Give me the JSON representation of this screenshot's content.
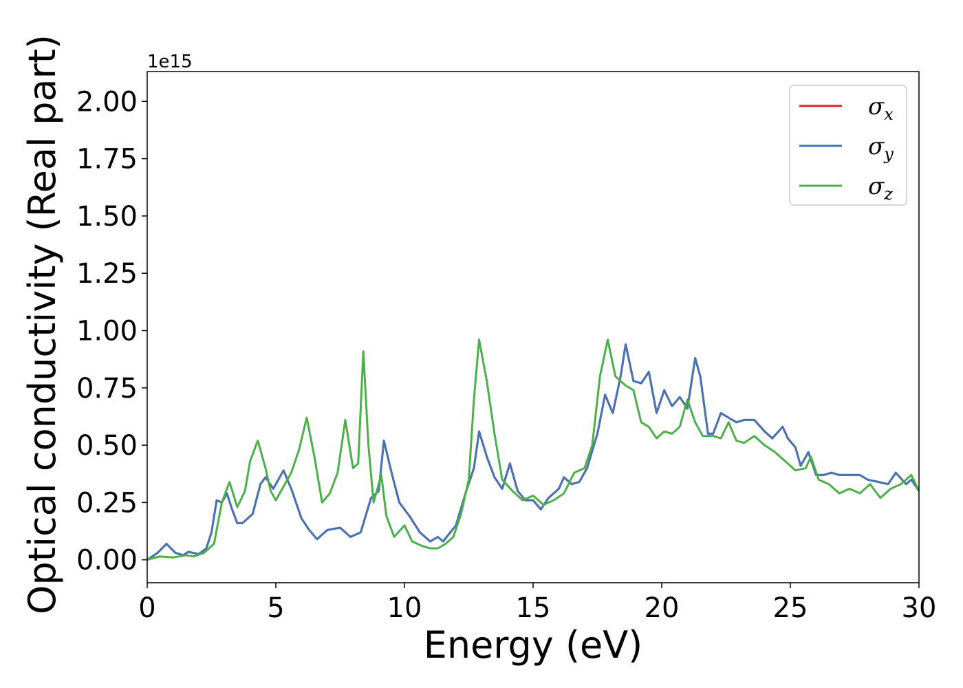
{
  "chart_data": {
    "type": "line",
    "title": "",
    "xlabel": "Energy (eV)",
    "ylabel": "Optical conductivity (Real part)",
    "y_offset_label": "1e15",
    "xlim": [
      0,
      30
    ],
    "ylim": [
      -0.1,
      2.13
    ],
    "x_ticks": [
      0,
      5,
      10,
      15,
      20,
      25,
      30
    ],
    "x_tick_labels": [
      "0",
      "5",
      "10",
      "15",
      "20",
      "25",
      "30"
    ],
    "y_ticks": [
      0,
      0.25,
      0.5,
      0.75,
      1.0,
      1.25,
      1.5,
      1.75,
      2.0
    ],
    "y_tick_labels": [
      "0.00",
      "0.25",
      "0.50",
      "0.75",
      "1.00",
      "1.25",
      "1.50",
      "1.75",
      "2.00"
    ],
    "grid": false,
    "legend_position": "top-right",
    "series": [
      {
        "name": "σx",
        "symbol": "σ",
        "subscript": "x",
        "color": "#d62728",
        "points": [
          [
            0,
            0
          ],
          [
            0.4,
            0.03
          ],
          [
            0.75,
            0.07
          ],
          [
            1.1,
            0.03
          ],
          [
            1.4,
            0.02
          ],
          [
            1.6,
            0.035
          ],
          [
            1.8,
            0.03
          ],
          [
            2.0,
            0.025
          ],
          [
            2.3,
            0.05
          ],
          [
            2.5,
            0.12
          ],
          [
            2.7,
            0.26
          ],
          [
            2.9,
            0.25
          ],
          [
            3.1,
            0.29
          ],
          [
            3.3,
            0.22
          ],
          [
            3.5,
            0.16
          ],
          [
            3.7,
            0.16
          ],
          [
            3.9,
            0.18
          ],
          [
            4.1,
            0.2
          ],
          [
            4.4,
            0.33
          ],
          [
            4.6,
            0.36
          ],
          [
            4.9,
            0.31
          ],
          [
            5.1,
            0.35
          ],
          [
            5.3,
            0.39
          ],
          [
            5.6,
            0.31
          ],
          [
            6.0,
            0.18
          ],
          [
            6.3,
            0.13
          ],
          [
            6.6,
            0.09
          ],
          [
            7.0,
            0.13
          ],
          [
            7.5,
            0.14
          ],
          [
            7.9,
            0.1
          ],
          [
            8.3,
            0.12
          ],
          [
            8.7,
            0.27
          ],
          [
            9.0,
            0.3
          ],
          [
            9.2,
            0.52
          ],
          [
            9.5,
            0.38
          ],
          [
            9.8,
            0.25
          ],
          [
            10.2,
            0.19
          ],
          [
            10.6,
            0.12
          ],
          [
            11.0,
            0.08
          ],
          [
            11.3,
            0.1
          ],
          [
            11.5,
            0.08
          ],
          [
            12.0,
            0.15
          ],
          [
            12.4,
            0.3
          ],
          [
            12.7,
            0.4
          ],
          [
            12.9,
            0.56
          ],
          [
            13.2,
            0.45
          ],
          [
            13.5,
            0.36
          ],
          [
            13.8,
            0.31
          ],
          [
            14.1,
            0.42
          ],
          [
            14.4,
            0.3
          ],
          [
            14.7,
            0.26
          ],
          [
            15.0,
            0.26
          ],
          [
            15.3,
            0.22
          ],
          [
            15.6,
            0.27
          ],
          [
            16.0,
            0.31
          ],
          [
            16.2,
            0.36
          ],
          [
            16.5,
            0.33
          ],
          [
            16.8,
            0.34
          ],
          [
            17.1,
            0.4
          ],
          [
            17.5,
            0.55
          ],
          [
            17.8,
            0.72
          ],
          [
            18.1,
            0.64
          ],
          [
            18.4,
            0.8
          ],
          [
            18.6,
            0.94
          ],
          [
            18.9,
            0.78
          ],
          [
            19.2,
            0.77
          ],
          [
            19.5,
            0.82
          ],
          [
            19.8,
            0.64
          ],
          [
            20.1,
            0.74
          ],
          [
            20.4,
            0.67
          ],
          [
            20.7,
            0.71
          ],
          [
            21.0,
            0.66
          ],
          [
            21.3,
            0.88
          ],
          [
            21.5,
            0.8
          ],
          [
            21.8,
            0.55
          ],
          [
            22.0,
            0.55
          ],
          [
            22.3,
            0.64
          ],
          [
            22.6,
            0.62
          ],
          [
            22.9,
            0.6
          ],
          [
            23.2,
            0.61
          ],
          [
            23.6,
            0.61
          ],
          [
            24.0,
            0.56
          ],
          [
            24.3,
            0.53
          ],
          [
            24.7,
            0.58
          ],
          [
            24.9,
            0.53
          ],
          [
            25.2,
            0.49
          ],
          [
            25.4,
            0.41
          ],
          [
            25.7,
            0.47
          ],
          [
            26.0,
            0.37
          ],
          [
            26.3,
            0.37
          ],
          [
            26.6,
            0.38
          ],
          [
            26.9,
            0.37
          ],
          [
            27.3,
            0.37
          ],
          [
            27.7,
            0.37
          ],
          [
            28.0,
            0.35
          ],
          [
            28.4,
            0.34
          ],
          [
            28.8,
            0.33
          ],
          [
            29.1,
            0.38
          ],
          [
            29.5,
            0.33
          ],
          [
            29.7,
            0.35
          ],
          [
            30.0,
            0.3
          ]
        ]
      },
      {
        "name": "σy",
        "symbol": "σ",
        "subscript": "y",
        "color": "#4575b4",
        "points": [
          [
            0,
            0
          ],
          [
            0.4,
            0.03
          ],
          [
            0.75,
            0.07
          ],
          [
            1.1,
            0.03
          ],
          [
            1.4,
            0.02
          ],
          [
            1.6,
            0.035
          ],
          [
            1.8,
            0.03
          ],
          [
            2.0,
            0.025
          ],
          [
            2.3,
            0.05
          ],
          [
            2.5,
            0.12
          ],
          [
            2.7,
            0.26
          ],
          [
            2.9,
            0.25
          ],
          [
            3.1,
            0.29
          ],
          [
            3.3,
            0.22
          ],
          [
            3.5,
            0.16
          ],
          [
            3.7,
            0.16
          ],
          [
            3.9,
            0.18
          ],
          [
            4.1,
            0.2
          ],
          [
            4.4,
            0.33
          ],
          [
            4.6,
            0.36
          ],
          [
            4.9,
            0.31
          ],
          [
            5.1,
            0.35
          ],
          [
            5.3,
            0.39
          ],
          [
            5.6,
            0.31
          ],
          [
            6.0,
            0.18
          ],
          [
            6.3,
            0.13
          ],
          [
            6.6,
            0.09
          ],
          [
            7.0,
            0.13
          ],
          [
            7.5,
            0.14
          ],
          [
            7.9,
            0.1
          ],
          [
            8.3,
            0.12
          ],
          [
            8.7,
            0.27
          ],
          [
            9.0,
            0.3
          ],
          [
            9.2,
            0.52
          ],
          [
            9.5,
            0.38
          ],
          [
            9.8,
            0.25
          ],
          [
            10.2,
            0.19
          ],
          [
            10.6,
            0.12
          ],
          [
            11.0,
            0.08
          ],
          [
            11.3,
            0.1
          ],
          [
            11.5,
            0.08
          ],
          [
            12.0,
            0.15
          ],
          [
            12.4,
            0.3
          ],
          [
            12.7,
            0.4
          ],
          [
            12.9,
            0.56
          ],
          [
            13.2,
            0.45
          ],
          [
            13.5,
            0.36
          ],
          [
            13.8,
            0.31
          ],
          [
            14.1,
            0.42
          ],
          [
            14.4,
            0.3
          ],
          [
            14.7,
            0.26
          ],
          [
            15.0,
            0.26
          ],
          [
            15.3,
            0.22
          ],
          [
            15.6,
            0.27
          ],
          [
            16.0,
            0.31
          ],
          [
            16.2,
            0.36
          ],
          [
            16.5,
            0.33
          ],
          [
            16.8,
            0.34
          ],
          [
            17.1,
            0.4
          ],
          [
            17.5,
            0.55
          ],
          [
            17.8,
            0.72
          ],
          [
            18.1,
            0.64
          ],
          [
            18.4,
            0.8
          ],
          [
            18.6,
            0.94
          ],
          [
            18.9,
            0.78
          ],
          [
            19.2,
            0.77
          ],
          [
            19.5,
            0.82
          ],
          [
            19.8,
            0.64
          ],
          [
            20.1,
            0.74
          ],
          [
            20.4,
            0.67
          ],
          [
            20.7,
            0.71
          ],
          [
            21.0,
            0.66
          ],
          [
            21.3,
            0.88
          ],
          [
            21.5,
            0.8
          ],
          [
            21.8,
            0.55
          ],
          [
            22.0,
            0.55
          ],
          [
            22.3,
            0.64
          ],
          [
            22.6,
            0.62
          ],
          [
            22.9,
            0.6
          ],
          [
            23.2,
            0.61
          ],
          [
            23.6,
            0.61
          ],
          [
            24.0,
            0.56
          ],
          [
            24.3,
            0.53
          ],
          [
            24.7,
            0.58
          ],
          [
            24.9,
            0.53
          ],
          [
            25.2,
            0.49
          ],
          [
            25.4,
            0.41
          ],
          [
            25.7,
            0.47
          ],
          [
            26.0,
            0.37
          ],
          [
            26.3,
            0.37
          ],
          [
            26.6,
            0.38
          ],
          [
            26.9,
            0.37
          ],
          [
            27.3,
            0.37
          ],
          [
            27.7,
            0.37
          ],
          [
            28.0,
            0.35
          ],
          [
            28.4,
            0.34
          ],
          [
            28.8,
            0.33
          ],
          [
            29.1,
            0.38
          ],
          [
            29.5,
            0.33
          ],
          [
            29.7,
            0.35
          ],
          [
            30.0,
            0.3
          ]
        ]
      },
      {
        "name": "σz",
        "symbol": "σ",
        "subscript": "z",
        "color": "#4daf4a",
        "points": [
          [
            0,
            0
          ],
          [
            0.5,
            0.015
          ],
          [
            1.0,
            0.01
          ],
          [
            1.5,
            0.02
          ],
          [
            1.8,
            0.015
          ],
          [
            2.2,
            0.03
          ],
          [
            2.6,
            0.07
          ],
          [
            2.9,
            0.25
          ],
          [
            3.2,
            0.34
          ],
          [
            3.5,
            0.23
          ],
          [
            3.8,
            0.3
          ],
          [
            4.0,
            0.43
          ],
          [
            4.3,
            0.52
          ],
          [
            4.6,
            0.4
          ],
          [
            4.8,
            0.3
          ],
          [
            5.0,
            0.26
          ],
          [
            5.3,
            0.32
          ],
          [
            5.6,
            0.38
          ],
          [
            5.9,
            0.48
          ],
          [
            6.2,
            0.62
          ],
          [
            6.5,
            0.45
          ],
          [
            6.8,
            0.25
          ],
          [
            7.1,
            0.29
          ],
          [
            7.4,
            0.38
          ],
          [
            7.7,
            0.61
          ],
          [
            8.0,
            0.4
          ],
          [
            8.2,
            0.42
          ],
          [
            8.4,
            0.91
          ],
          [
            8.6,
            0.5
          ],
          [
            8.8,
            0.25
          ],
          [
            9.1,
            0.37
          ],
          [
            9.3,
            0.19
          ],
          [
            9.6,
            0.1
          ],
          [
            10.0,
            0.15
          ],
          [
            10.3,
            0.08
          ],
          [
            10.7,
            0.06
          ],
          [
            11.0,
            0.05
          ],
          [
            11.3,
            0.05
          ],
          [
            11.6,
            0.07
          ],
          [
            11.9,
            0.1
          ],
          [
            12.2,
            0.2
          ],
          [
            12.5,
            0.35
          ],
          [
            12.7,
            0.7
          ],
          [
            12.9,
            0.96
          ],
          [
            13.2,
            0.78
          ],
          [
            13.5,
            0.55
          ],
          [
            13.8,
            0.35
          ],
          [
            14.2,
            0.3
          ],
          [
            14.6,
            0.26
          ],
          [
            15.0,
            0.28
          ],
          [
            15.4,
            0.24
          ],
          [
            15.8,
            0.26
          ],
          [
            16.2,
            0.29
          ],
          [
            16.6,
            0.38
          ],
          [
            17.0,
            0.4
          ],
          [
            17.3,
            0.5
          ],
          [
            17.6,
            0.8
          ],
          [
            17.9,
            0.96
          ],
          [
            18.2,
            0.8
          ],
          [
            18.6,
            0.76
          ],
          [
            18.9,
            0.74
          ],
          [
            19.2,
            0.6
          ],
          [
            19.5,
            0.58
          ],
          [
            19.8,
            0.53
          ],
          [
            20.1,
            0.56
          ],
          [
            20.4,
            0.55
          ],
          [
            20.7,
            0.58
          ],
          [
            21.0,
            0.7
          ],
          [
            21.3,
            0.6
          ],
          [
            21.6,
            0.54
          ],
          [
            22.0,
            0.54
          ],
          [
            22.3,
            0.53
          ],
          [
            22.6,
            0.6
          ],
          [
            22.9,
            0.52
          ],
          [
            23.2,
            0.51
          ],
          [
            23.6,
            0.54
          ],
          [
            24.0,
            0.5
          ],
          [
            24.4,
            0.47
          ],
          [
            24.8,
            0.43
          ],
          [
            25.2,
            0.39
          ],
          [
            25.6,
            0.4
          ],
          [
            25.8,
            0.45
          ],
          [
            26.1,
            0.35
          ],
          [
            26.5,
            0.33
          ],
          [
            26.9,
            0.29
          ],
          [
            27.3,
            0.31
          ],
          [
            27.7,
            0.29
          ],
          [
            28.1,
            0.33
          ],
          [
            28.5,
            0.27
          ],
          [
            28.9,
            0.31
          ],
          [
            29.3,
            0.33
          ],
          [
            29.7,
            0.37
          ],
          [
            30.0,
            0.3
          ]
        ]
      }
    ]
  }
}
